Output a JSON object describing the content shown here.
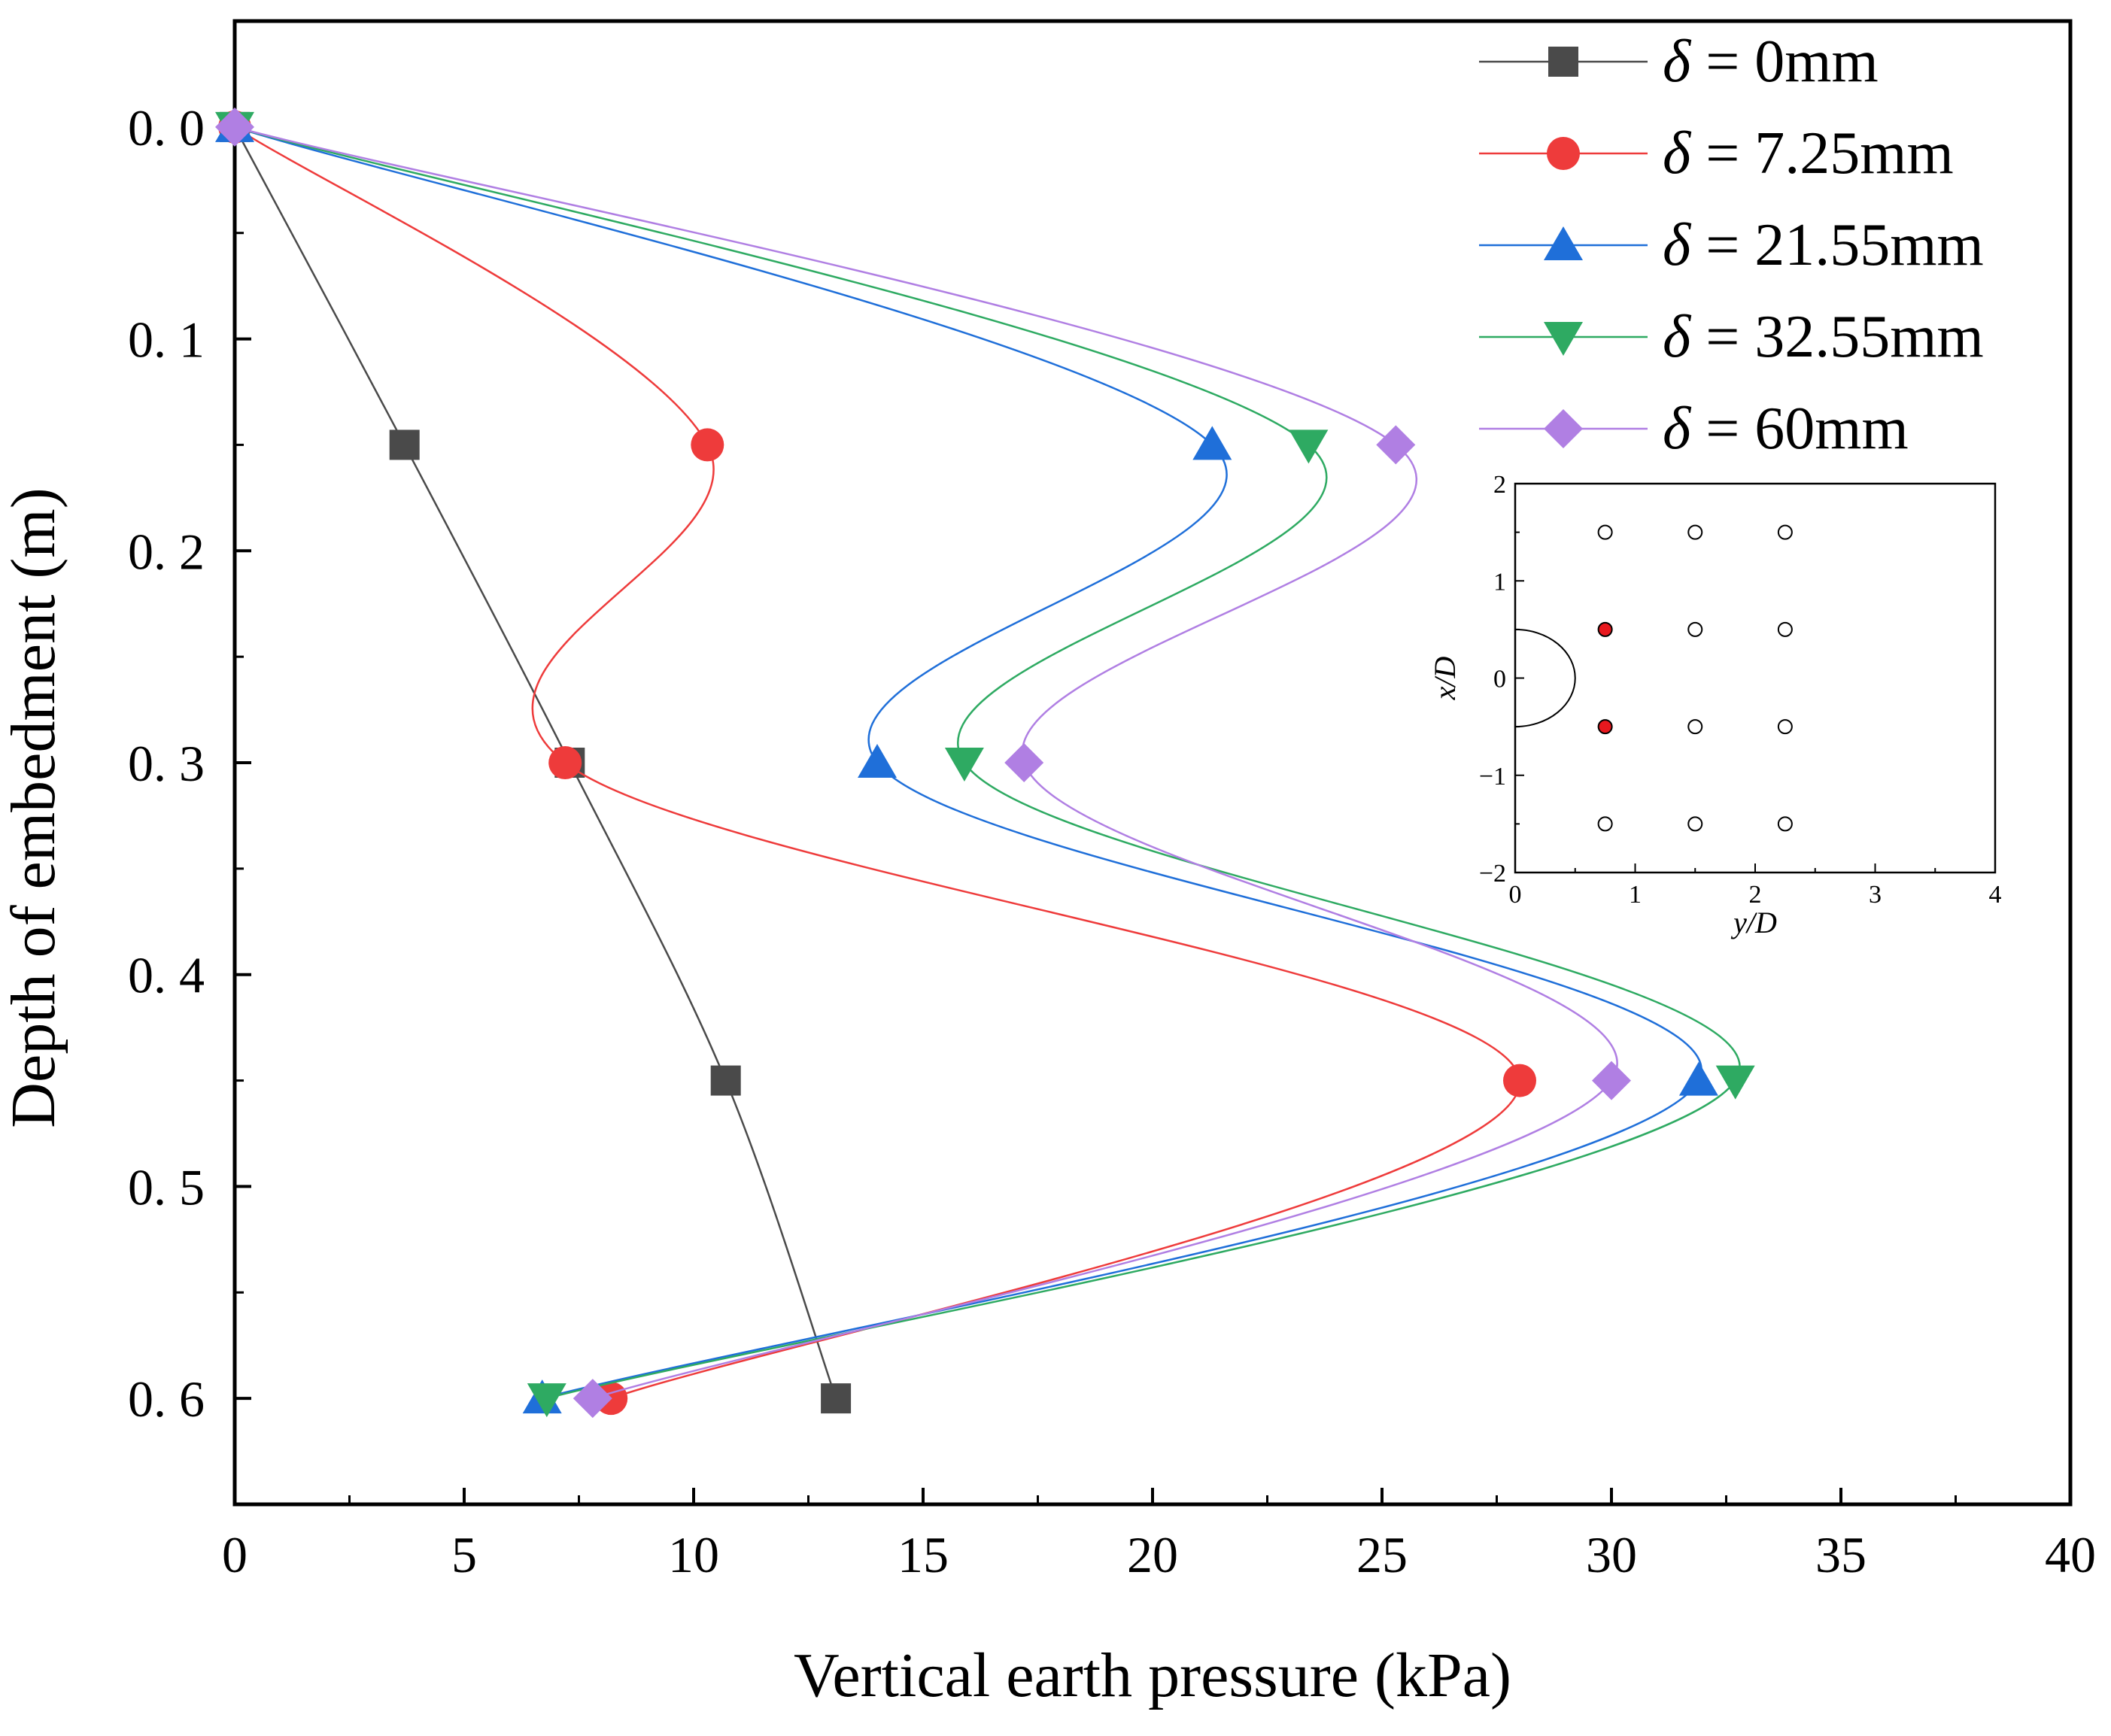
{
  "chart_data": {
    "type": "line",
    "title": "",
    "xlabel": "Vertical earth pressure (kPa)",
    "ylabel": "Depth of embedment (m)",
    "xlim": [
      0,
      40
    ],
    "ylim": [
      0.65,
      -0.05
    ],
    "y_inverted": true,
    "xticks": [
      0,
      5,
      10,
      15,
      20,
      25,
      30,
      35,
      40
    ],
    "xtick_labels": [
      "0",
      "5",
      "10",
      "15",
      "20",
      "25",
      "30",
      "35",
      "40"
    ],
    "yticks": [
      0.0,
      0.1,
      0.2,
      0.3,
      0.4,
      0.5,
      0.6
    ],
    "ytick_labels": [
      "0. 0",
      "0. 1",
      "0. 2",
      "0. 3",
      "0. 4",
      "0. 5",
      "0. 6"
    ],
    "grid": false,
    "legend_position": "top-right",
    "series": [
      {
        "name": "δ = 0mm",
        "legend_symbol": "δ",
        "legend_text": " = 0mm",
        "marker": "square",
        "color": "#4a4a4a",
        "x": [
          0,
          3.7,
          7.3,
          10.7,
          13.1
        ],
        "y": [
          0,
          0.15,
          0.3,
          0.45,
          0.6
        ]
      },
      {
        "name": "δ = 7.25mm",
        "legend_symbol": "δ",
        "legend_text": " = 7.25mm",
        "marker": "circle",
        "color": "#ee3b3b",
        "x": [
          0,
          10.3,
          7.2,
          28.0,
          8.2
        ],
        "y": [
          0,
          0.15,
          0.3,
          0.45,
          0.6
        ]
      },
      {
        "name": "δ = 21.55mm",
        "legend_symbol": "δ",
        "legend_text": " = 21.55mm",
        "marker": "triangle-up",
        "color": "#1f6fd9",
        "x": [
          0,
          21.3,
          14.0,
          31.9,
          6.7
        ],
        "y": [
          0,
          0.15,
          0.3,
          0.45,
          0.6
        ]
      },
      {
        "name": "δ = 32.55mm",
        "legend_symbol": "δ",
        "legend_text": " = 32.55mm",
        "marker": "triangle-down",
        "color": "#2eaa62",
        "x": [
          0,
          23.4,
          15.9,
          32.7,
          6.8
        ],
        "y": [
          0,
          0.15,
          0.3,
          0.45,
          0.6
        ]
      },
      {
        "name": "δ = 60mm",
        "legend_symbol": "δ",
        "legend_text": " = 60mm",
        "marker": "diamond",
        "color": "#b07fe3",
        "x": [
          0,
          25.3,
          17.2,
          30.0,
          7.8
        ],
        "y": [
          0,
          0.15,
          0.3,
          0.45,
          0.6
        ]
      }
    ],
    "inset": {
      "type": "scatter",
      "xlabel": "y/D",
      "ylabel": "x/D",
      "xlim": [
        0,
        4
      ],
      "ylim": [
        -2,
        2
      ],
      "xticks": [
        0,
        1,
        2,
        3,
        4
      ],
      "yticks": [
        -2,
        -1,
        0,
        1,
        2
      ],
      "xtick_labels": [
        "0",
        "1",
        "2",
        "3",
        "4"
      ],
      "ytick_labels": [
        "−2",
        "−1",
        "0",
        "1",
        "2"
      ],
      "pile_semicircle_radius": 0.5,
      "points": [
        {
          "x": 0.75,
          "y": 1.5,
          "filled": false
        },
        {
          "x": 1.5,
          "y": 1.5,
          "filled": false
        },
        {
          "x": 2.25,
          "y": 1.5,
          "filled": false
        },
        {
          "x": 0.75,
          "y": 0.5,
          "filled": true
        },
        {
          "x": 1.5,
          "y": 0.5,
          "filled": false
        },
        {
          "x": 2.25,
          "y": 0.5,
          "filled": false
        },
        {
          "x": 0.75,
          "y": -0.5,
          "filled": true
        },
        {
          "x": 1.5,
          "y": -0.5,
          "filled": false
        },
        {
          "x": 2.25,
          "y": -0.5,
          "filled": false
        },
        {
          "x": 0.75,
          "y": -1.5,
          "filled": false
        },
        {
          "x": 1.5,
          "y": -1.5,
          "filled": false
        },
        {
          "x": 2.25,
          "y": -1.5,
          "filled": false
        }
      ],
      "filled_color": "#e8181e"
    }
  }
}
